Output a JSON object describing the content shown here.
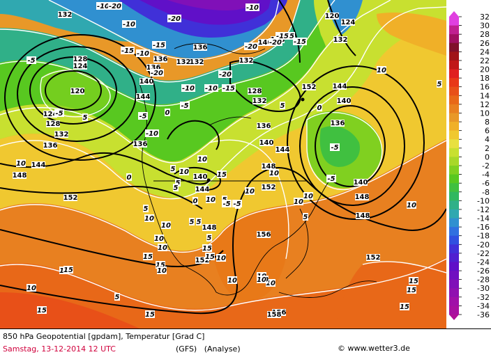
{
  "title": "850 hPa Geopotential [gpdam], Temperatur [Grad C]",
  "date_line": "Samstag, 13-12-2014  12 UTC",
  "model": "(GFS)",
  "analysis": "(Analyse)",
  "credit": "www.wetter3.de",
  "legend_values": [
    "32",
    "30",
    "28",
    "26",
    "24",
    "22",
    "20",
    "18",
    "16",
    "14",
    "12",
    "10",
    "8",
    "6",
    "4",
    "2",
    "0",
    "-2",
    "-4",
    "-6",
    "-8",
    "-10",
    "-12",
    "-14",
    "-16",
    "-18",
    "-20",
    "-22",
    "-24",
    "-26",
    "-28",
    "-30",
    "-32",
    "-34",
    "-36"
  ],
  "legend_colors": [
    "#e040e0",
    "#c02090",
    "#a01060",
    "#80102a",
    "#a01418",
    "#c01818",
    "#e02020",
    "#e83818",
    "#e85018",
    "#e86818",
    "#e88020",
    "#e89828",
    "#f0b028",
    "#f0c830",
    "#e8e040",
    "#c8e030",
    "#a8d828",
    "#80d020",
    "#58c820",
    "#40c040",
    "#30b860",
    "#30b088",
    "#30a8b0",
    "#3090d0",
    "#3070e0",
    "#3050e0",
    "#4030d8",
    "#5020d0",
    "#6010c8",
    "#7010c0",
    "#8010b8",
    "#9010b0",
    "#a010a8",
    "#a810a0",
    "#b01098"
  ],
  "geopotential_labels": [
    {
      "t": "132"
    },
    {
      "t": "128"
    },
    {
      "t": "124"
    },
    {
      "t": "120"
    },
    {
      "t": "124"
    },
    {
      "t": "128"
    },
    {
      "t": "132"
    },
    {
      "t": "136"
    },
    {
      "t": "144"
    },
    {
      "t": "148"
    },
    {
      "t": "136"
    },
    {
      "t": "140"
    },
    {
      "t": "144"
    },
    {
      "t": "136"
    },
    {
      "t": "132"
    },
    {
      "t": "128"
    },
    {
      "t": "132"
    },
    {
      "t": "136"
    },
    {
      "t": "140"
    },
    {
      "t": "144"
    },
    {
      "t": "148"
    },
    {
      "t": "152"
    },
    {
      "t": "144"
    },
    {
      "t": "140"
    },
    {
      "t": "148"
    },
    {
      "t": "152"
    },
    {
      "t": "156"
    },
    {
      "t": "152"
    },
    {
      "t": "148"
    },
    {
      "t": "152"
    },
    {
      "t": "156"
    },
    {
      "t": "158"
    },
    {
      "t": "144"
    },
    {
      "t": "140"
    },
    {
      "t": "136"
    },
    {
      "t": "140"
    },
    {
      "t": "148"
    },
    {
      "t": "152"
    },
    {
      "t": "120"
    },
    {
      "t": "124"
    },
    {
      "t": "132"
    },
    {
      "t": "136"
    },
    {
      "t": "136"
    },
    {
      "t": "132"
    },
    {
      "t": "140"
    },
    {
      "t": "128"
    },
    {
      "t": "132"
    }
  ],
  "temperature_labels": [
    {
      "t": "-10"
    },
    {
      "t": "-5"
    },
    {
      "t": "-5"
    },
    {
      "t": "5"
    },
    {
      "t": "10"
    },
    {
      "t": "10"
    },
    {
      "t": "10"
    },
    {
      "t": "5"
    },
    {
      "t": "-10"
    },
    {
      "t": "-20"
    },
    {
      "t": "-20"
    },
    {
      "t": "-15"
    },
    {
      "t": "-10"
    },
    {
      "t": "-15"
    },
    {
      "t": "-20"
    },
    {
      "t": "-20"
    },
    {
      "t": "-10"
    },
    {
      "t": "-15"
    },
    {
      "t": "-20"
    },
    {
      "t": "-15"
    },
    {
      "t": "-10"
    },
    {
      "t": "-5"
    },
    {
      "t": "0"
    },
    {
      "t": "5"
    },
    {
      "t": "-10"
    },
    {
      "t": "-15"
    },
    {
      "t": "-20"
    },
    {
      "t": "-15"
    },
    {
      "t": "-10"
    },
    {
      "t": "-5"
    },
    {
      "t": "0"
    },
    {
      "t": "5"
    },
    {
      "t": "10"
    },
    {
      "t": "5"
    },
    {
      "t": "0"
    },
    {
      "t": "-5"
    },
    {
      "t": "-5"
    },
    {
      "t": "5"
    },
    {
      "t": "10"
    },
    {
      "t": "10"
    },
    {
      "t": "10"
    },
    {
      "t": "15"
    },
    {
      "t": "10"
    },
    {
      "t": "5"
    },
    {
      "t": "0"
    },
    {
      "t": "5"
    },
    {
      "t": "10"
    },
    {
      "t": "5"
    },
    {
      "t": "10"
    },
    {
      "t": "15"
    },
    {
      "t": "10"
    },
    {
      "t": "5"
    },
    {
      "t": "-5"
    },
    {
      "t": "-5"
    },
    {
      "t": "5"
    },
    {
      "t": "5"
    },
    {
      "t": "10"
    },
    {
      "t": "15"
    },
    {
      "t": "15"
    },
    {
      "t": "15"
    },
    {
      "t": "10"
    },
    {
      "t": "10"
    },
    {
      "t": "5"
    },
    {
      "t": "10"
    },
    {
      "t": "10"
    },
    {
      "t": "15"
    },
    {
      "t": "15"
    },
    {
      "t": "15"
    },
    {
      "t": "10"
    },
    {
      "t": "5"
    },
    {
      "t": "10"
    },
    {
      "t": "15"
    },
    {
      "t": "15"
    },
    {
      "t": "15"
    },
    {
      "t": "10"
    },
    {
      "t": "10"
    },
    {
      "t": "10"
    },
    {
      "t": "10"
    },
    {
      "t": "10"
    }
  ]
}
